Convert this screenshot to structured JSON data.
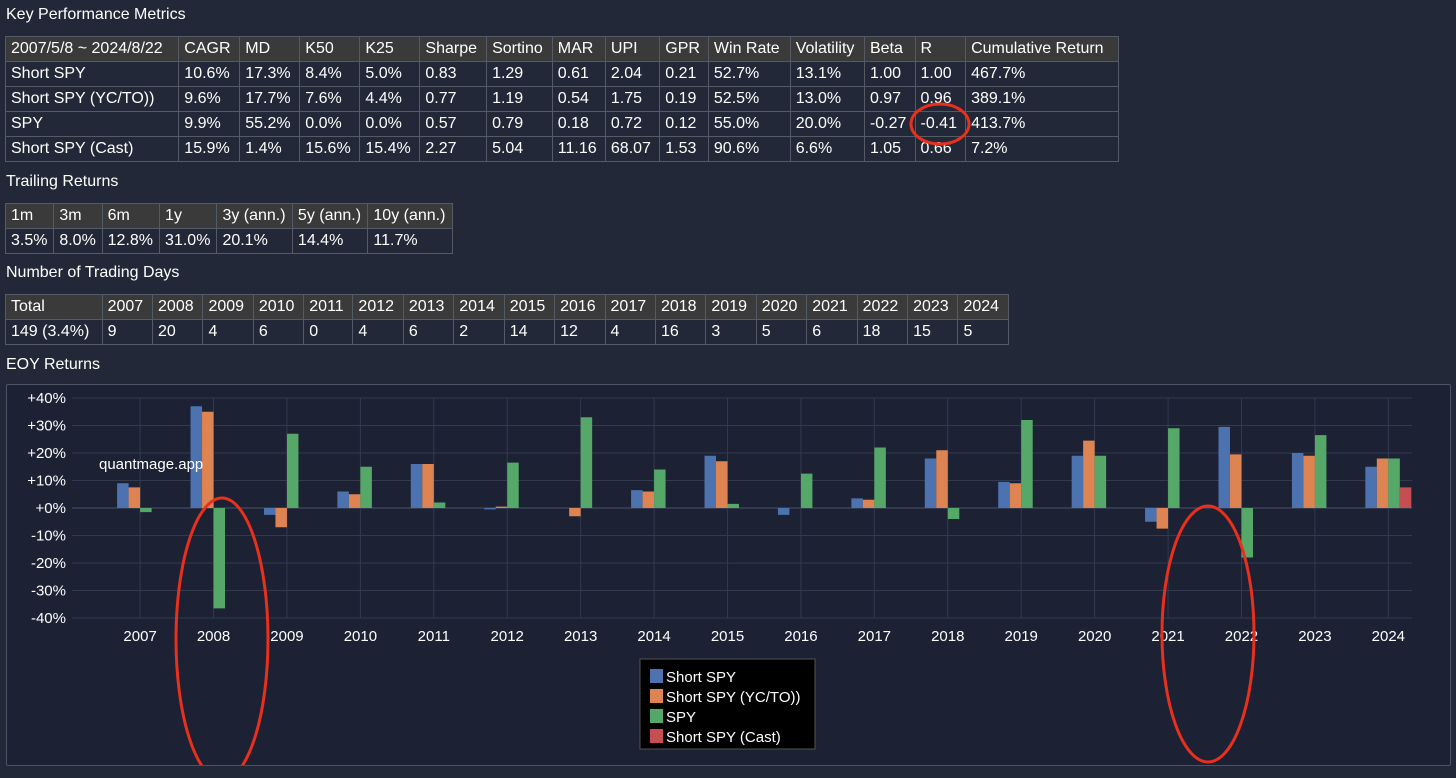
{
  "kpm": {
    "title": "Key Performance Metrics",
    "headers": [
      "2007/5/8 ~ 2024/8/22",
      "CAGR",
      "MD",
      "K50",
      "K25",
      "Sharpe",
      "Sortino",
      "MAR",
      "UPI",
      "GPR",
      "Win Rate",
      "Volatility",
      "Beta",
      "R",
      "Cumulative Return"
    ],
    "rows": [
      [
        "Short SPY",
        "10.6%",
        "17.3%",
        "8.4%",
        "5.0%",
        "0.83",
        "1.29",
        "0.61",
        "2.04",
        "0.21",
        "52.7%",
        "13.1%",
        "1.00",
        "1.00",
        "467.7%"
      ],
      [
        "Short SPY (YC/TO))",
        "9.6%",
        "17.7%",
        "7.6%",
        "4.4%",
        "0.77",
        "1.19",
        "0.54",
        "1.75",
        "0.19",
        "52.5%",
        "13.0%",
        "0.97",
        "0.96",
        "389.1%"
      ],
      [
        "SPY",
        "9.9%",
        "55.2%",
        "0.0%",
        "0.0%",
        "0.57",
        "0.79",
        "0.18",
        "0.72",
        "0.12",
        "55.0%",
        "20.0%",
        "-0.27",
        "-0.41",
        "413.7%"
      ],
      [
        "Short SPY (Cast)",
        "15.9%",
        "1.4%",
        "15.6%",
        "15.4%",
        "2.27",
        "5.04",
        "11.16",
        "68.07",
        "1.53",
        "90.6%",
        "6.6%",
        "1.05",
        "0.66",
        "7.2%"
      ]
    ]
  },
  "trailing": {
    "title": "Trailing Returns",
    "headers": [
      "1m",
      "3m",
      "6m",
      "1y",
      "3y (ann.)",
      "5y (ann.)",
      "10y (ann.)"
    ],
    "row": [
      "3.5%",
      "8.0%",
      "12.8%",
      "31.0%",
      "20.1%",
      "14.4%",
      "11.7%"
    ]
  },
  "trading_days": {
    "title": "Number of Trading Days",
    "headers": [
      "Total",
      "2007",
      "2008",
      "2009",
      "2010",
      "2011",
      "2012",
      "2013",
      "2014",
      "2015",
      "2016",
      "2017",
      "2018",
      "2019",
      "2020",
      "2021",
      "2022",
      "2023",
      "2024"
    ],
    "row": [
      "149 (3.4%)",
      "9",
      "20",
      "4",
      "6",
      "0",
      "4",
      "6",
      "2",
      "14",
      "12",
      "4",
      "16",
      "3",
      "5",
      "6",
      "18",
      "15",
      "5"
    ]
  },
  "eoy": {
    "title": "EOY Returns",
    "watermark": "quantmage.app"
  },
  "colors": {
    "annotation": "#e8301c"
  },
  "chart_data": {
    "type": "bar",
    "categories": [
      "2007",
      "2008",
      "2009",
      "2010",
      "2011",
      "2012",
      "2013",
      "2014",
      "2015",
      "2016",
      "2017",
      "2018",
      "2019",
      "2020",
      "2021",
      "2022",
      "2023",
      "2024"
    ],
    "ylim": [
      -40,
      40
    ],
    "yticks": [
      "+40%",
      "+30%",
      "+20%",
      "+10%",
      "+0%",
      "-10%",
      "-20%",
      "-30%",
      "-40%"
    ],
    "legend_position": "bottom-center",
    "grid": true,
    "series": [
      {
        "name": "Short SPY",
        "color": "#4c72b0",
        "values": [
          9,
          37,
          -2.5,
          6,
          16,
          -0.5,
          0,
          6.5,
          19,
          -2.5,
          3.5,
          18,
          9.5,
          19,
          -5,
          29.5,
          20,
          15
        ]
      },
      {
        "name": "Short SPY (YC/TO))",
        "color": "#dd8452",
        "values": [
          7.5,
          35,
          -7,
          5,
          16,
          0.5,
          -3,
          6,
          17,
          0,
          3,
          21,
          9,
          24.5,
          -7.5,
          19.5,
          19,
          18
        ]
      },
      {
        "name": "SPY",
        "color": "#55a868",
        "values": [
          -1.5,
          -36.5,
          27,
          15,
          2,
          16.5,
          33,
          14,
          1.5,
          12.5,
          22,
          -4,
          32,
          19,
          29,
          -18,
          26.5,
          18
        ]
      },
      {
        "name": "Short SPY (Cast)",
        "color": "#c44e52",
        "values": [
          0,
          0,
          0,
          0,
          0,
          0,
          0,
          0,
          0,
          0,
          0,
          0,
          0,
          0,
          0,
          0,
          0,
          7.5
        ]
      }
    ]
  }
}
